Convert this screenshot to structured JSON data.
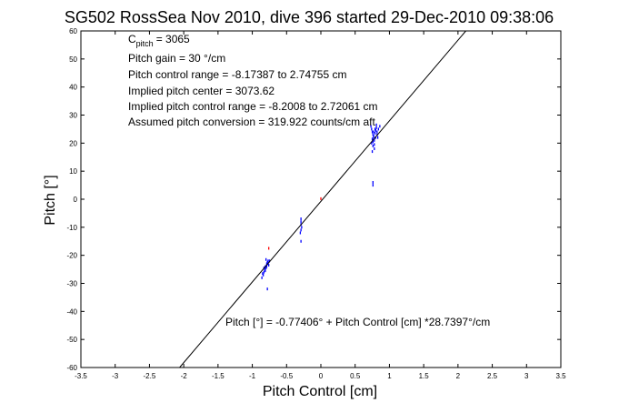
{
  "chart_data": {
    "type": "scatter",
    "title": "SG502 RossSea Nov 2010, dive 396 started 29-Dec-2010 09:38:06",
    "xlabel": "Pitch Control [cm]",
    "ylabel": "Pitch [°]",
    "xlim": [
      -3.5,
      3.5
    ],
    "ylim": [
      -60,
      60
    ],
    "xticks": [
      "-3.5",
      "-3",
      "-2.5",
      "-2",
      "-1.5",
      "-1",
      "-0.5",
      "0",
      "0.5",
      "1",
      "1.5",
      "2",
      "2.5",
      "3",
      "3.5"
    ],
    "yticks": [
      "60",
      "50",
      "40",
      "30",
      "20",
      "10",
      "0",
      "-10",
      "-20",
      "-30",
      "-40",
      "-50",
      "-60"
    ],
    "grid": false,
    "annotations": {
      "c_pitch": {
        "symbol": "C",
        "subscript": "pitch",
        "value": "= 3065"
      },
      "lines": [
        "Pitch gain = 30 °/cm",
        "Pitch control range = -8.17387 to 2.74755 cm",
        "Implied pitch center = 3073.62",
        "Implied pitch control range = -8.2008 to 2.72061 cm",
        "Assumed pitch conversion = 319.922 counts/cm aft"
      ],
      "fit_label": "Pitch [°] = -0.77406° + Pitch Control [cm] *28.7397°/cm"
    },
    "fit_line": {
      "intercept": -0.77406,
      "slope": 28.7397,
      "color": "#000000"
    },
    "series": [
      {
        "color": "#0000ff",
        "points": [
          [
            -0.84,
            -27
          ],
          [
            -0.83,
            -26
          ],
          [
            -0.82,
            -25
          ],
          [
            -0.81,
            -24
          ],
          [
            -0.8,
            -24.5
          ],
          [
            -0.79,
            -23
          ],
          [
            -0.78,
            -22.5
          ],
          [
            -0.77,
            -22
          ],
          [
            -0.76,
            -23.5
          ],
          [
            -0.85,
            -26.5
          ],
          [
            -0.83,
            -24.5
          ],
          [
            -0.81,
            -25.5
          ],
          [
            -0.79,
            -24
          ],
          [
            -0.77,
            -23
          ],
          [
            -0.75,
            -22
          ],
          [
            -0.86,
            -28
          ],
          [
            -0.8,
            -21.5
          ],
          [
            -0.78,
            -32
          ],
          [
            -0.29,
            -7
          ],
          [
            -0.29,
            -8
          ],
          [
            -0.29,
            -9
          ],
          [
            -0.28,
            -10
          ],
          [
            -0.29,
            -11
          ],
          [
            -0.3,
            -12
          ],
          [
            -0.29,
            -15
          ],
          [
            0.73,
            26
          ],
          [
            0.74,
            25
          ],
          [
            0.75,
            24
          ],
          [
            0.76,
            23
          ],
          [
            0.77,
            22
          ],
          [
            0.78,
            21
          ],
          [
            0.74,
            20
          ],
          [
            0.76,
            19
          ],
          [
            0.78,
            18
          ],
          [
            0.75,
            17
          ],
          [
            0.77,
            22.5
          ],
          [
            0.79,
            23.5
          ],
          [
            0.8,
            24.5
          ],
          [
            0.81,
            25.5
          ],
          [
            0.82,
            24
          ],
          [
            0.84,
            25
          ],
          [
            0.86,
            26
          ],
          [
            0.75,
            21.5
          ],
          [
            0.76,
            20.5
          ],
          [
            0.78,
            19.5
          ],
          [
            0.8,
            22
          ],
          [
            0.82,
            23
          ],
          [
            0.83,
            22
          ],
          [
            0.77,
            24
          ],
          [
            0.79,
            25
          ],
          [
            0.81,
            26.5
          ],
          [
            0.76,
            6
          ],
          [
            0.76,
            5
          ]
        ]
      },
      {
        "color": "#ff0000",
        "points": [
          [
            0.0,
            0.2
          ],
          [
            -0.76,
            -17.5
          ]
        ]
      }
    ]
  }
}
